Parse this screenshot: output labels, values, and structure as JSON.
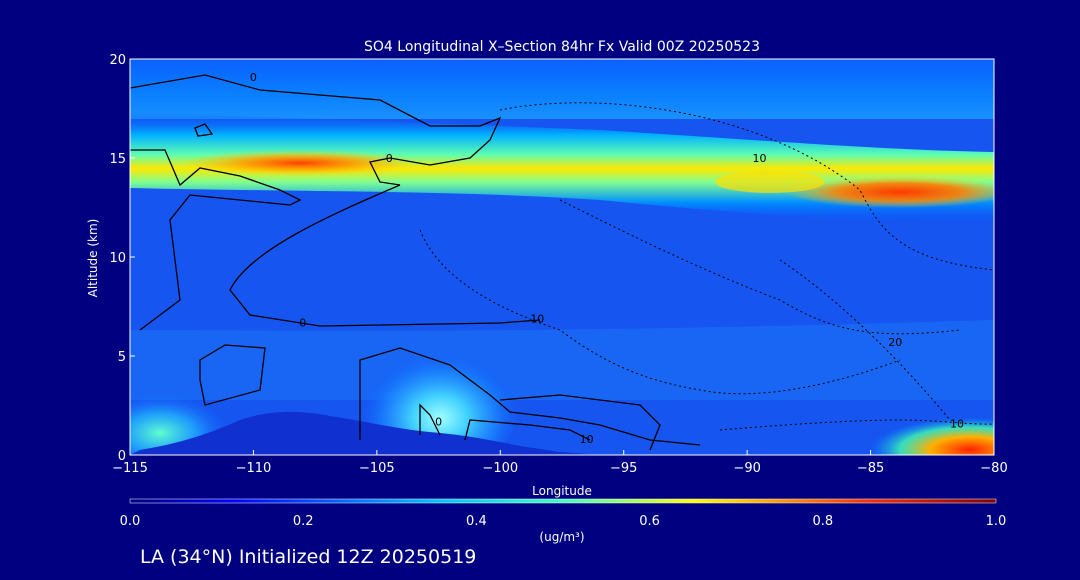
{
  "chart_data": {
    "type": "heatmap",
    "title": "SO4 Longitudinal X–Section 84hr  Fx Valid 00Z 20250523",
    "xlabel": "Longitude",
    "ylabel": "Altitude (km)",
    "xlim": [
      -115,
      -80
    ],
    "ylim": [
      0,
      20
    ],
    "x_ticks": [
      -115,
      -110,
      -105,
      -100,
      -95,
      -90,
      -85,
      -80
    ],
    "x_tick_labels": [
      "−115",
      "−110",
      "−105",
      "−100",
      "−95",
      "−90",
      "−85",
      "−80"
    ],
    "y_ticks": [
      0,
      5,
      10,
      15,
      20
    ],
    "y_tick_labels": [
      "0",
      "5",
      "10",
      "15",
      "20"
    ],
    "colorbar": {
      "min": 0.0,
      "max": 1.0,
      "ticks": [
        "0.0",
        "0.2",
        "0.4",
        "0.6",
        "0.8",
        "1.0"
      ],
      "label": "(ug/m³)"
    },
    "contour_labels": [
      {
        "text": "0",
        "lon": -110,
        "alt": 18.9
      },
      {
        "text": "0",
        "lon": -104.5,
        "alt": 14.8
      },
      {
        "text": "0",
        "lon": -108,
        "alt": 6.5
      },
      {
        "text": "10",
        "lon": -89.5,
        "alt": 14.8
      },
      {
        "text": "10",
        "lon": -98.5,
        "alt": 6.7
      },
      {
        "text": "20",
        "lon": -84,
        "alt": 5.5
      },
      {
        "text": "10",
        "lon": -96.5,
        "alt": 0.6
      },
      {
        "text": "10",
        "lon": -81.5,
        "alt": 1.4
      },
      {
        "text": "0",
        "lon": -102.5,
        "alt": 1.5
      }
    ],
    "concentration_features": [
      {
        "feature": "tropopause layer",
        "lon_range": [
          -115,
          -80
        ],
        "alt_range": [
          12.5,
          16
        ],
        "peak_ug_m3": 0.85
      },
      {
        "feature": "surface plume",
        "lon": -102.5,
        "alt": 2,
        "peak_ug_m3": 0.5
      },
      {
        "feature": "boundary layer east",
        "lon_range": [
          -86,
          -80
        ],
        "alt_range": [
          0,
          1.5
        ],
        "peak_ug_m3": 0.9
      }
    ]
  },
  "footer": {
    "caption": "LA (34°N) Initialized 12Z 20250519"
  },
  "colors": {
    "background": "#000080",
    "foreground": "#ffffff"
  }
}
